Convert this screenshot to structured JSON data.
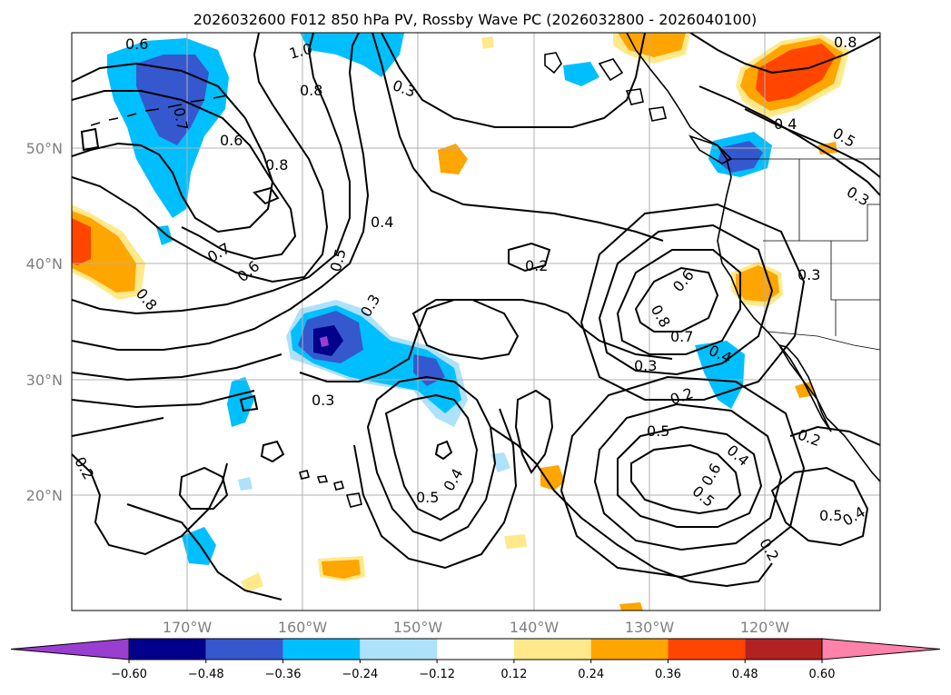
{
  "title": "2026032600 F012 850 hPa PV, Rossby Wave PC (2026032800 - 2026040100)",
  "map": {
    "projection": "cylindrical",
    "lon_range": [
      -180,
      -110
    ],
    "lat_range": [
      10,
      60
    ],
    "grid": true,
    "lon_ticks": [
      -170,
      -160,
      -150,
      -140,
      -130,
      -120
    ],
    "lat_ticks": [
      20,
      30,
      40,
      50
    ],
    "lon_tick_labels": [
      "170°W",
      "160°W",
      "150°W",
      "140°W",
      "130°W",
      "120°W"
    ],
    "lat_tick_labels": [
      "20°N",
      "30°N",
      "40°N",
      "50°N"
    ]
  },
  "colorbar": {
    "extend": "both",
    "orientation": "horizontal",
    "boundaries": [
      -0.72,
      -0.6,
      -0.48,
      -0.36,
      -0.24,
      -0.12,
      0.12,
      0.24,
      0.36,
      0.48,
      0.6,
      0.72
    ],
    "colors": [
      "#9a3ed1",
      "#00008b",
      "#3558cf",
      "#00bfff",
      "#aee1fa",
      "#ffffff",
      "#ffe98a",
      "#ffa500",
      "#ff4500",
      "#b22222",
      "#ff82ab"
    ],
    "tick_values": [
      -0.6,
      -0.48,
      -0.36,
      -0.24,
      -0.12,
      0.12,
      0.24,
      0.36,
      0.48,
      0.6
    ],
    "tick_labels": [
      "−0.60",
      "−0.48",
      "−0.36",
      "−0.24",
      "−0.12",
      "0.12",
      "0.24",
      "0.36",
      "0.48",
      "0.60"
    ]
  },
  "shaded_regions": [
    {
      "name": "gulf-of-alaska-negative",
      "center": [
        -166,
        55
      ],
      "level": -0.36
    },
    {
      "name": "central-pacific-negative",
      "center": [
        -157,
        33
      ],
      "level": -0.6
    },
    {
      "name": "pnw-negative",
      "center": [
        -123,
        50
      ],
      "level": -0.36
    },
    {
      "name": "baja-negative",
      "center": [
        -126,
        30
      ],
      "level": -0.24
    },
    {
      "name": "dateline-positive",
      "center": [
        -177,
        41
      ],
      "level": 0.36
    },
    {
      "name": "bc-positive",
      "center": [
        -122,
        56
      ],
      "level": 0.48
    },
    {
      "name": "california-positive",
      "center": [
        -122,
        37
      ],
      "level": 0.36
    },
    {
      "name": "alaska-positive",
      "center": [
        -130,
        59
      ],
      "level": 0.24
    }
  ],
  "contour_labels": [
    "0.6",
    "1.0",
    "0.8",
    "0.3",
    "0.7",
    "0.6",
    "0.8",
    "0.4",
    "0.5",
    "0.7",
    "0.6",
    "0.2",
    "0.3",
    "0.3",
    "0.8",
    "0.5",
    "0.4",
    "0.5",
    "0.6",
    "0.8",
    "0.7",
    "0.3",
    "0.4",
    "0.2",
    "0.5",
    "0.4",
    "0.6",
    "0.2",
    "0.3",
    "0.2",
    "0.5",
    "0.4",
    "0.2",
    "0.8",
    "0.4",
    "0.5",
    "0.3"
  ]
}
